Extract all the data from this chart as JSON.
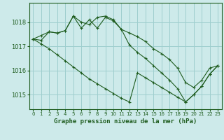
{
  "title": "Graphe pression niveau de la mer (hPa)",
  "background_color": "#cdeaea",
  "grid_color": "#9ecece",
  "line_color": "#1e5c1e",
  "x_ticks": [
    0,
    1,
    2,
    3,
    4,
    5,
    6,
    7,
    8,
    9,
    10,
    11,
    12,
    13,
    14,
    15,
    16,
    17,
    18,
    19,
    20,
    21,
    22,
    23
  ],
  "y_ticks": [
    1015,
    1016,
    1017,
    1018
  ],
  "ylim": [
    1014.4,
    1018.8
  ],
  "xlim": [
    -0.5,
    23.5
  ],
  "series1": [
    1017.3,
    1017.45,
    1017.6,
    1017.55,
    1017.65,
    1018.25,
    1018.0,
    1017.9,
    1018.2,
    1018.25,
    1018.1,
    1017.7,
    1017.55,
    1017.4,
    1017.2,
    1016.9,
    1016.7,
    1016.45,
    1016.1,
    1015.5,
    1015.3,
    1015.6,
    1016.1,
    1016.2
  ],
  "series2": [
    1017.3,
    1017.25,
    1017.6,
    1017.55,
    1017.65,
    1018.25,
    1017.75,
    1018.1,
    1017.75,
    1018.2,
    1018.05,
    1017.7,
    1017.05,
    1016.75,
    1016.5,
    1016.2,
    1015.9,
    1015.6,
    1015.25,
    1014.7,
    1015.0,
    1015.35,
    1015.85,
    1016.2
  ],
  "series3": [
    1017.3,
    1017.1,
    1016.9,
    1016.65,
    1016.4,
    1016.15,
    1015.9,
    1015.65,
    1015.45,
    1015.25,
    1015.05,
    1014.85,
    1014.7,
    1015.9,
    1015.7,
    1015.5,
    1015.3,
    1015.1,
    1014.9,
    1014.7,
    1015.0,
    1015.35,
    1015.85,
    1016.2
  ]
}
